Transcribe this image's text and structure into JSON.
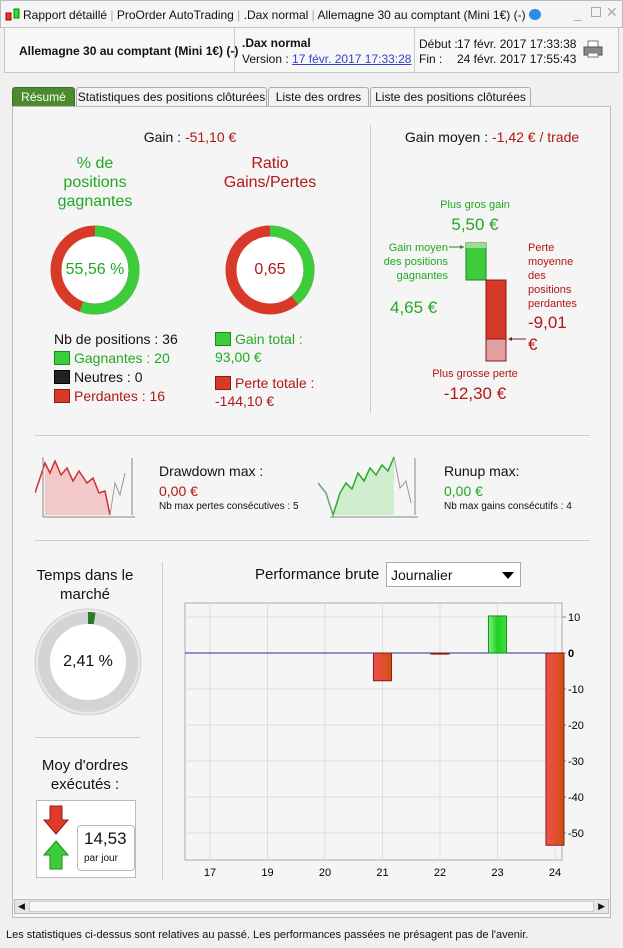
{
  "window": {
    "title_parts": [
      "Rapport détaillé",
      "ProOrder AutoTrading",
      ".Dax normal",
      "Allemagne 30 au comptant (Mini 1€) (-)"
    ]
  },
  "header": {
    "instrument": "Allemagne 30 au comptant (Mini 1€) (-)",
    "system": ".Dax normal",
    "version_label": "Version :",
    "version_value": "17 févr. 2017 17:33:28",
    "start_label": "Début :",
    "start_value": "17 févr. 2017 17:33:38",
    "end_label": "Fin :",
    "end_value": "24 févr. 2017 17:55:43"
  },
  "tabs": [
    "Résumé",
    "Statistiques des positions clôturées",
    "Liste des ordres",
    "Liste des positions clôturées"
  ],
  "summary": {
    "gain_label": "Gain :",
    "gain_value": "-51,10 €",
    "avg_gain_label": "Gain moyen :",
    "avg_gain_value": "-1,42 € / trade",
    "pct_title": "% de positions gagnantes",
    "pct_value": "55,56 %",
    "pct_fraction": 0.5556,
    "ratio_title": "Ratio Gains/Pertes",
    "ratio_value": "0,65",
    "ratio_fraction": 0.39,
    "nb_positions": "Nb de positions : 36",
    "winners": "Gagnantes : 20",
    "neutral": "Neutres : 0",
    "losers": "Perdantes : 16",
    "total_gain_label": "Gain total :",
    "total_gain_value": "93,00 €",
    "total_loss_label": "Perte totale :",
    "total_loss_value": "-144,10 €",
    "biggest_gain_label": "Plus gros gain",
    "biggest_gain_value": "5,50 €",
    "avg_win_label": "Gain moyen des positions gagnantes",
    "avg_win_value": "4,65 €",
    "avg_loss_label": "Perte moyenne des positions perdantes",
    "avg_loss_value": "-9,01 €",
    "biggest_loss_label": "Plus grosse perte",
    "biggest_loss_value": "-12,30 €"
  },
  "drawdown": {
    "label": "Drawdown max :",
    "value": "0,00 €",
    "sub": "Nb max pertes consécutives : 5"
  },
  "runup": {
    "label": "Runup max:",
    "value": "0,00 €",
    "sub": "Nb max gains consécutifs : 4"
  },
  "time_in_market": {
    "label": "Temps dans le marché",
    "value": "2,41 %",
    "fraction": 0.0241
  },
  "orders": {
    "label": "Moy d'ordres exécutés :",
    "value": "14,53",
    "unit": "par jour"
  },
  "performance": {
    "label": "Performance brute",
    "period": "Journalier"
  },
  "chart_data": {
    "type": "bar",
    "categories": [
      "17",
      "19",
      "20",
      "21",
      "22",
      "23",
      "24"
    ],
    "values": [
      0,
      0,
      0,
      -7.7,
      -0.3,
      10.3,
      -53.4
    ],
    "yticks": [
      10,
      0,
      -10,
      -20,
      -30,
      -40,
      -50
    ],
    "ylim": [
      -57.5,
      13.9
    ],
    "grid": true,
    "colors": {
      "positive": "#2ed82e",
      "negative": "#e03a2a"
    }
  },
  "footer": "Les statistiques ci-dessus sont relatives au passé. Les performances passées ne présagent pas de l'avenir.",
  "colors": {
    "green": "#22a822",
    "red": "#b01818",
    "tab_active": "#4c8a2c"
  }
}
